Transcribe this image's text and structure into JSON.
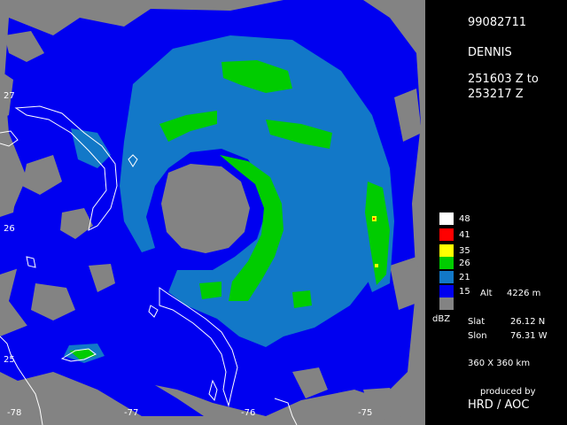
{
  "radar": {
    "id": "99082711",
    "storm": "DENNIS",
    "time_line1": "251603 Z to",
    "time_line2": "253217 Z"
  },
  "map": {
    "lat_labels": [
      "27",
      "26",
      "25"
    ],
    "lon_labels": [
      "-78",
      "-77",
      "-76",
      "-75"
    ]
  },
  "legend": {
    "items": [
      {
        "value": "48",
        "color": "#ffffff"
      },
      {
        "value": "41",
        "color": "#ff0000"
      },
      {
        "value": "35",
        "color": "#ffff00"
      },
      {
        "value": "26",
        "color": "#00cc00"
      },
      {
        "value": "21",
        "color": "#1278c8"
      },
      {
        "value": "15",
        "color": "#0000f0"
      },
      {
        "value": "",
        "color": "#838383"
      }
    ],
    "unit": "dBZ",
    "alt_label": "Alt",
    "alt_value": "4226 m"
  },
  "position": {
    "slat_label": "Slat",
    "slat_value": "26.12 N",
    "slon_label": "Slon",
    "slon_value": "76.31 W"
  },
  "domain_size": "360 X 360 km",
  "credits": {
    "line1": "produced by",
    "line2": "HRD / AOC"
  }
}
